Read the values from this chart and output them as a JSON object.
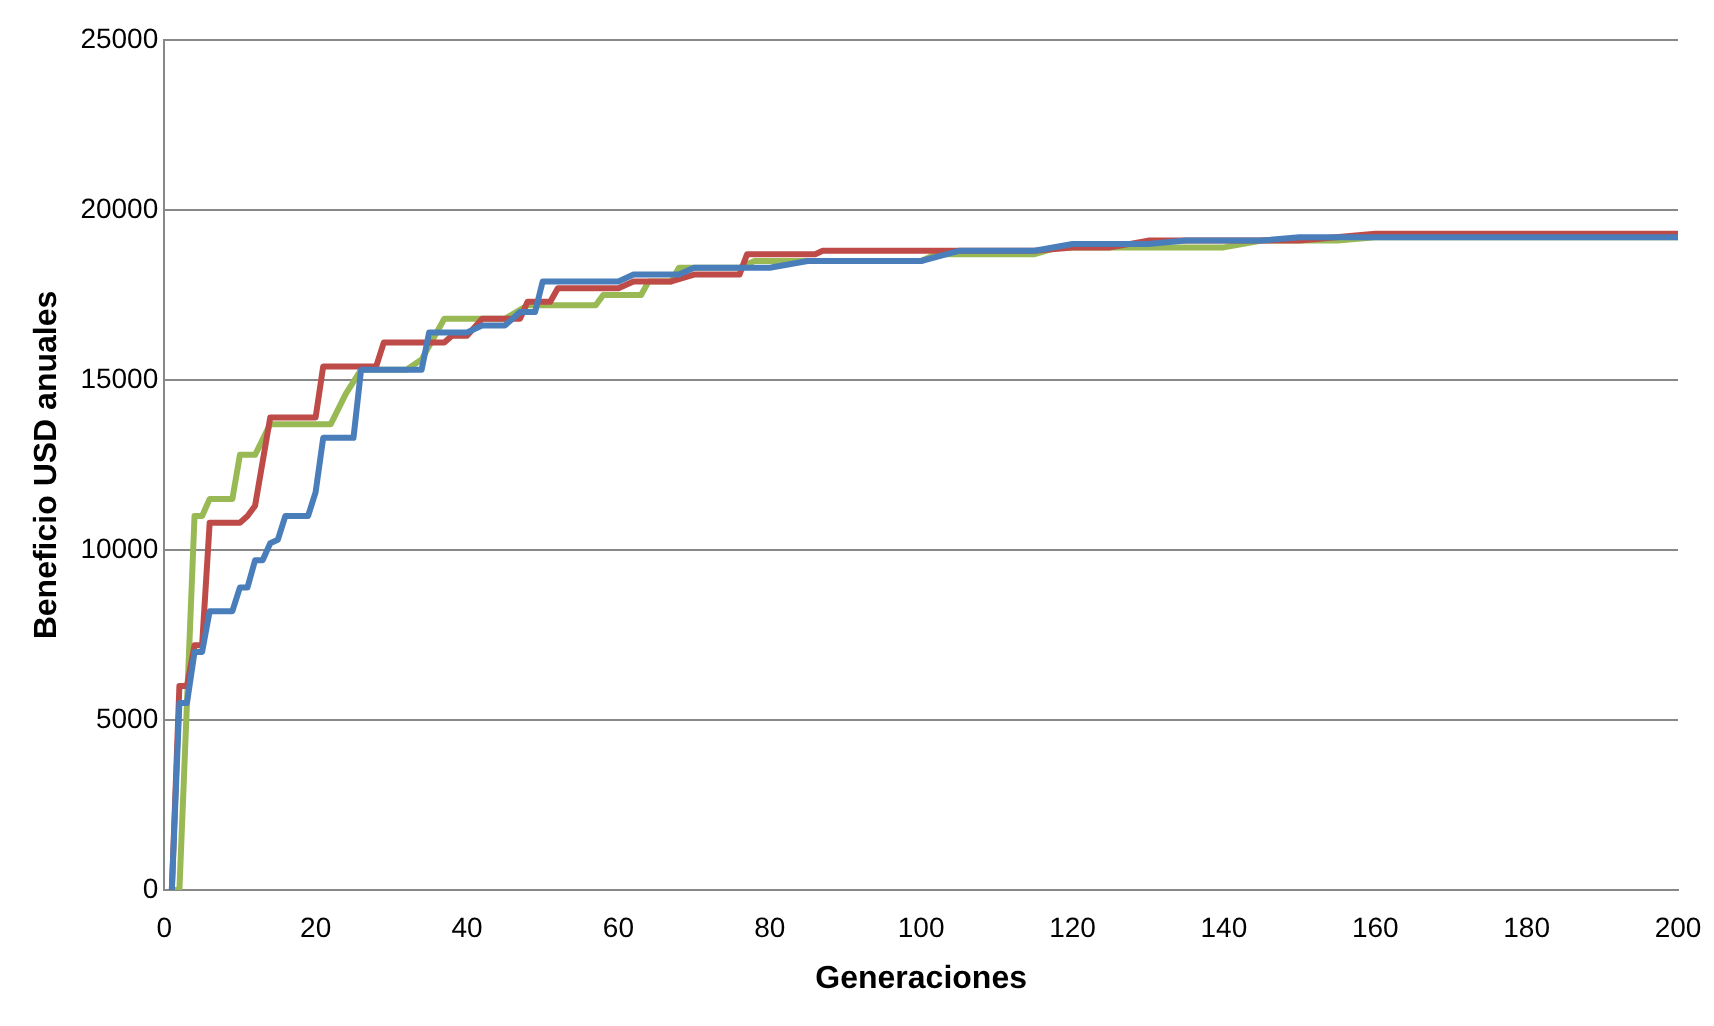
{
  "chart_data": {
    "type": "line",
    "xlabel": "Generaciones",
    "ylabel": "Beneficio USD anuales",
    "xlim": [
      0,
      200
    ],
    "xticks": [
      0,
      20,
      40,
      60,
      80,
      100,
      120,
      140,
      160,
      180,
      200
    ],
    "ylim": [
      0,
      25000
    ],
    "yticks": [
      0,
      5000,
      10000,
      15000,
      20000,
      25000
    ],
    "grid": "y",
    "legend": false,
    "marker": "none",
    "line_style": "solid",
    "series": [
      {
        "color": "#4a7ebb",
        "x": [
          1,
          2,
          3,
          4,
          5,
          6,
          9,
          10,
          11,
          12,
          13,
          14,
          15,
          16,
          19,
          20,
          21,
          25,
          26,
          34,
          35,
          40,
          42,
          45,
          47,
          49,
          50,
          60,
          62,
          68,
          70,
          80,
          85,
          100,
          105,
          115,
          120,
          130,
          135,
          145,
          150,
          200
        ],
        "values": [
          0,
          5500,
          5500,
          7000,
          7000,
          8200,
          8200,
          8900,
          8900,
          9700,
          9700,
          10200,
          10300,
          11000,
          11000,
          11700,
          13300,
          13300,
          15300,
          15300,
          16400,
          16400,
          16600,
          16600,
          17000,
          17000,
          17900,
          17900,
          18100,
          18100,
          18300,
          18300,
          18500,
          18500,
          18800,
          18800,
          19000,
          19000,
          19100,
          19100,
          19200,
          19200
        ]
      },
      {
        "color": "#be4b48",
        "x": [
          1,
          2,
          3,
          4,
          5,
          6,
          10,
          11,
          12,
          14,
          20,
          21,
          28,
          29,
          37,
          38,
          40,
          42,
          47,
          48,
          51,
          52,
          60,
          62,
          67,
          70,
          76,
          77,
          86,
          87,
          115,
          120,
          125,
          130,
          150,
          160,
          200
        ],
        "values": [
          0,
          6000,
          6000,
          7200,
          7200,
          10800,
          10800,
          11000,
          11300,
          13900,
          13900,
          15400,
          15400,
          16100,
          16100,
          16300,
          16300,
          16800,
          16800,
          17300,
          17300,
          17700,
          17700,
          17900,
          17900,
          18100,
          18100,
          18700,
          18700,
          18800,
          18800,
          18900,
          18900,
          19100,
          19100,
          19300,
          19300
        ]
      },
      {
        "color": "#98b954",
        "x": [
          1,
          2,
          4,
          5,
          6,
          9,
          10,
          12,
          14,
          22,
          24,
          26,
          32,
          34,
          37,
          45,
          48,
          57,
          58,
          63,
          64,
          67,
          68,
          76,
          78,
          100,
          102,
          115,
          118,
          140,
          145,
          155,
          160,
          200
        ],
        "values": [
          0,
          0,
          11000,
          11000,
          11500,
          11500,
          12800,
          12800,
          13700,
          13700,
          14600,
          15300,
          15300,
          15600,
          16800,
          16800,
          17200,
          17200,
          17500,
          17500,
          17900,
          17900,
          18300,
          18300,
          18500,
          18500,
          18700,
          18700,
          18900,
          18900,
          19100,
          19100,
          19200,
          19200
        ]
      }
    ]
  }
}
